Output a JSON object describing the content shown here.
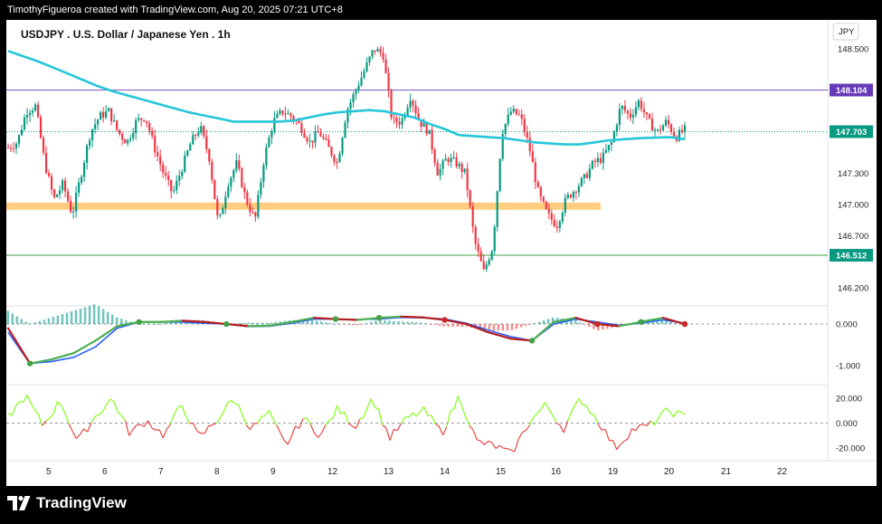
{
  "header": {
    "credit": "TimothyFigueroa created with TradingView.com, Aug 20, 2025 07:21 UTC+8"
  },
  "footer": {
    "brand": "TradingView"
  },
  "chart_data": {
    "type": "candlestick",
    "title": "USDJPY . U.S. Dollar / Japanese Yen . 1h",
    "currency": "JPY",
    "x_tick_labels": [
      "5",
      "6",
      "7",
      "8",
      "9",
      "12",
      "13",
      "14",
      "15",
      "16",
      "19",
      "20",
      "21",
      "22"
    ],
    "price_axis": {
      "ticks": [
        "148.500",
        "147.300",
        "147.000",
        "146.700",
        "146.200"
      ],
      "range": [
        146.05,
        148.78
      ]
    },
    "price_badges": [
      {
        "label": "148.104",
        "value": 148.104,
        "color": "#673ab7"
      },
      {
        "label": "147.703",
        "value": 147.703,
        "color": "#089981"
      },
      {
        "label": "146.512",
        "value": 146.512,
        "color": "#089981"
      }
    ],
    "horizontal_lines": [
      {
        "value": 148.104,
        "color": "#7e57c2",
        "style": "solid"
      },
      {
        "value": 147.703,
        "color": "#089981",
        "style": "dotted"
      },
      {
        "value": 146.512,
        "color": "#43a047",
        "style": "solid"
      }
    ],
    "support_zone": {
      "low": 146.95,
      "high": 147.02,
      "color": "#ffcc80"
    },
    "moving_average_color": "#26c6da",
    "moving_average_path": [
      148.48,
      148.43,
      148.38,
      148.32,
      148.26,
      148.2,
      148.14,
      148.09,
      148.05,
      148.01,
      147.97,
      147.93,
      147.89,
      147.86,
      147.83,
      147.8,
      147.8,
      147.8,
      147.8,
      147.81,
      147.84,
      147.87,
      147.89,
      147.9,
      147.91,
      147.9,
      147.87,
      147.84,
      147.78,
      147.73,
      147.67,
      147.66,
      147.65,
      147.64,
      147.62,
      147.6,
      147.59,
      147.58,
      147.58,
      147.6,
      147.62,
      147.63,
      147.64,
      147.645,
      147.65,
      147.63
    ],
    "price_path": [
      147.55,
      147.6,
      147.9,
      147.95,
      147.4,
      147.05,
      147.2,
      146.9,
      147.3,
      147.7,
      147.85,
      147.9,
      147.7,
      147.6,
      147.8,
      147.85,
      147.55,
      147.3,
      147.1,
      147.35,
      147.6,
      147.75,
      147.45,
      146.8,
      147.2,
      147.4,
      147.05,
      146.85,
      147.45,
      147.8,
      147.9,
      147.85,
      147.75,
      147.6,
      147.7,
      147.55,
      147.4,
      147.9,
      148.1,
      148.3,
      148.5,
      148.45,
      147.8,
      147.8,
      148.05,
      147.8,
      147.7,
      147.3,
      147.45,
      147.4,
      147.3,
      146.65,
      146.35,
      146.6,
      147.7,
      147.9,
      147.85,
      147.55,
      147.1,
      146.9,
      146.8,
      147.05,
      147.15,
      147.25,
      147.4,
      147.45,
      147.6,
      147.95,
      147.85,
      148.0,
      147.8,
      147.7,
      147.8,
      147.65,
      147.72
    ],
    "indicator_1": {
      "ticks": [
        "0.000",
        "-1.000"
      ],
      "range": [
        -1.35,
        0.35
      ],
      "fast_line": [
        -0.1,
        -0.95,
        -0.85,
        -0.7,
        -0.4,
        -0.05,
        0.05,
        0.05,
        0.08,
        0.05,
        0.0,
        -0.05,
        -0.04,
        0.05,
        0.15,
        0.12,
        0.1,
        0.15,
        0.18,
        0.16,
        0.1,
        0.0,
        -0.2,
        -0.35,
        -0.4,
        0.05,
        0.15,
        0.0,
        -0.05,
        0.05,
        0.15,
        0.0
      ],
      "slow_line": [
        -0.2,
        -0.95,
        -0.9,
        -0.8,
        -0.55,
        -0.1,
        0.05,
        0.05,
        0.05,
        0.02,
        0.0,
        -0.06,
        -0.05,
        0.02,
        0.12,
        0.12,
        0.11,
        0.12,
        0.16,
        0.15,
        0.12,
        0.02,
        -0.15,
        -0.3,
        -0.4,
        0.0,
        0.12,
        0.05,
        -0.03,
        0.02,
        0.1,
        0.02
      ]
    },
    "indicator_2": {
      "ticks": [
        "20.000",
        "0.000",
        "-20.000"
      ],
      "range": [
        -28,
        28
      ],
      "series": [
        5,
        22,
        -2,
        18,
        -15,
        5,
        20,
        -8,
        2,
        -10,
        15,
        -12,
        2,
        20,
        -5,
        8,
        -18,
        4,
        -10,
        12,
        -3,
        20,
        -12,
        4,
        10,
        -8,
        22,
        -15,
        -18,
        -25,
        0,
        15,
        -5,
        20,
        2,
        -20,
        -5,
        -2,
        10,
        5
      ]
    }
  }
}
